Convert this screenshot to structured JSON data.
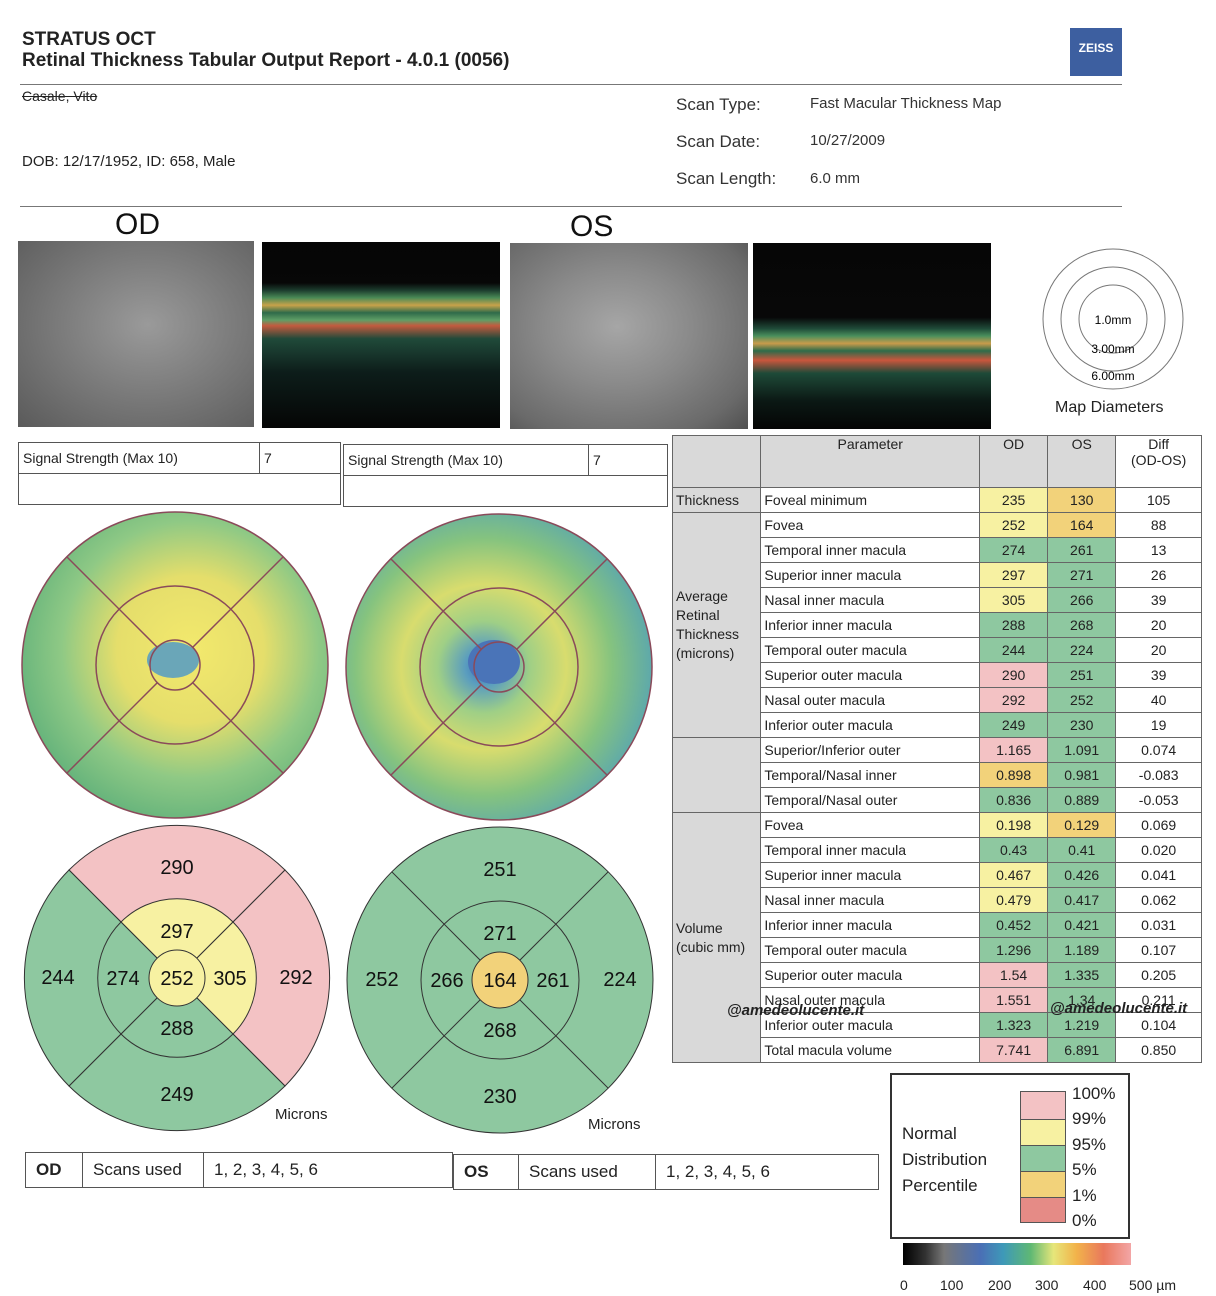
{
  "header": {
    "product": "STRATUS OCT",
    "report_title": "Retinal Thickness Tabular Output Report - 4.0.1 (0056)",
    "logo": "ZEISS"
  },
  "patient": {
    "name": "Casale, Vito",
    "dob_line": "DOB: 12/17/1952, ID: 658, Male"
  },
  "scan": {
    "type_label": "Scan Type:",
    "type_value": "Fast Macular Thickness Map",
    "date_label": "Scan Date:",
    "date_value": "10/27/2009",
    "length_label": "Scan Length:",
    "length_value": "6.0 mm"
  },
  "eyes": {
    "od": "OD",
    "os": "OS"
  },
  "map_diameters": {
    "label": "Map Diameters",
    "rings": [
      "1.0mm",
      "3.00mm",
      "6.00mm"
    ]
  },
  "signal": {
    "label": "Signal Strength (Max 10)",
    "od_value": "7",
    "os_value": "7"
  },
  "params_table": {
    "headers": [
      "Parameter",
      "OD",
      "OS",
      "Diff\n(OD-OS)"
    ],
    "groups": [
      {
        "label": "Thickness",
        "rows": [
          {
            "name": "Foveal minimum",
            "od": "235",
            "os": "130",
            "diff": "105",
            "od_c": "yel",
            "os_c": "org"
          }
        ]
      },
      {
        "label": "Average Retinal Thickness (microns)",
        "rows": [
          {
            "name": "Fovea",
            "od": "252",
            "os": "164",
            "diff": "88",
            "od_c": "yel",
            "os_c": "org"
          },
          {
            "name": "Temporal inner macula",
            "od": "274",
            "os": "261",
            "diff": "13",
            "od_c": "grn",
            "os_c": "grn"
          },
          {
            "name": "Superior inner macula",
            "od": "297",
            "os": "271",
            "diff": "26",
            "od_c": "yel",
            "os_c": "grn"
          },
          {
            "name": "Nasal inner macula",
            "od": "305",
            "os": "266",
            "diff": "39",
            "od_c": "yel",
            "os_c": "grn"
          },
          {
            "name": "Inferior inner macula",
            "od": "288",
            "os": "268",
            "diff": "20",
            "od_c": "grn",
            "os_c": "grn"
          },
          {
            "name": "Temporal outer macula",
            "od": "244",
            "os": "224",
            "diff": "20",
            "od_c": "grn",
            "os_c": "grn"
          },
          {
            "name": "Superior outer macula",
            "od": "290",
            "os": "251",
            "diff": "39",
            "od_c": "pink",
            "os_c": "grn"
          },
          {
            "name": "Nasal outer macula",
            "od": "292",
            "os": "252",
            "diff": "40",
            "od_c": "pink",
            "os_c": "grn"
          },
          {
            "name": "Inferior outer macula",
            "od": "249",
            "os": "230",
            "diff": "19",
            "od_c": "grn",
            "os_c": "grn"
          }
        ]
      },
      {
        "label": "",
        "rows": [
          {
            "name": "Superior/Inferior outer",
            "od": "1.165",
            "os": "1.091",
            "diff": "0.074",
            "od_c": "pink",
            "os_c": "grn"
          },
          {
            "name": "Temporal/Nasal inner",
            "od": "0.898",
            "os": "0.981",
            "diff": "-0.083",
            "od_c": "org",
            "os_c": "grn"
          },
          {
            "name": "Temporal/Nasal outer",
            "od": "0.836",
            "os": "0.889",
            "diff": "-0.053",
            "od_c": "grn",
            "os_c": "grn"
          }
        ]
      },
      {
        "label": "Volume (cubic mm)",
        "rows": [
          {
            "name": "Fovea",
            "od": "0.198",
            "os": "0.129",
            "diff": "0.069",
            "od_c": "yel",
            "os_c": "org"
          },
          {
            "name": "Temporal inner macula",
            "od": "0.43",
            "os": "0.41",
            "diff": "0.020",
            "od_c": "grn",
            "os_c": "grn"
          },
          {
            "name": "Superior inner macula",
            "od": "0.467",
            "os": "0.426",
            "diff": "0.041",
            "od_c": "yel",
            "os_c": "grn"
          },
          {
            "name": "Nasal inner macula",
            "od": "0.479",
            "os": "0.417",
            "diff": "0.062",
            "od_c": "yel",
            "os_c": "grn"
          },
          {
            "name": "Inferior inner macula",
            "od": "0.452",
            "os": "0.421",
            "diff": "0.031",
            "od_c": "grn",
            "os_c": "grn"
          },
          {
            "name": "Temporal outer macula",
            "od": "1.296",
            "os": "1.189",
            "diff": "0.107",
            "od_c": "grn",
            "os_c": "grn"
          },
          {
            "name": "Superior outer macula",
            "od": "1.54",
            "os": "1.335",
            "diff": "0.205",
            "od_c": "pink",
            "os_c": "grn"
          },
          {
            "name": "Nasal outer macula",
            "od": "1.551",
            "os": "1.34",
            "diff": "0.211",
            "od_c": "pink",
            "os_c": "grn"
          },
          {
            "name": "Inferior outer macula",
            "od": "1.323",
            "os": "1.219",
            "diff": "0.104",
            "od_c": "grn",
            "os_c": "grn"
          },
          {
            "name": "Total macula volume",
            "od": "7.741",
            "os": "6.891",
            "diff": "0.850",
            "od_c": "pink",
            "os_c": "grn"
          }
        ]
      }
    ]
  },
  "sector_maps": {
    "unit_label": "Microns",
    "od": {
      "center": "252",
      "inner_sup": "297",
      "inner_temp": "274",
      "inner_nasal": "305",
      "inner_inf": "288",
      "outer_sup": "290",
      "outer_temp": "244",
      "outer_nasal": "292",
      "outer_inf": "249"
    },
    "os": {
      "center": "164",
      "inner_sup": "271",
      "inner_temp": "266",
      "inner_nasal": "261",
      "inner_inf": "268",
      "outer_sup": "251",
      "outer_temp": "252",
      "outer_nasal": "224",
      "outer_inf": "230"
    }
  },
  "scans_used": {
    "od_label": "OD",
    "os_label": "OS",
    "label": "Scans used",
    "od_value": "1, 2, 3, 4, 5, 6",
    "os_value": "1, 2, 3, 4, 5, 6"
  },
  "legend": {
    "title_lines": [
      "Normal",
      "Distribution",
      "Percentile"
    ],
    "percentiles": [
      "100%",
      "99%",
      "95%",
      "5%",
      "1%",
      "0%"
    ],
    "colors": {
      "pink": "#f3c2c4",
      "yellow": "#f7f1a2",
      "green": "#8ec8a0",
      "orange": "#f2d27a",
      "red": "#e58b86"
    }
  },
  "scale_bar": {
    "ticks": [
      "0",
      "100",
      "200",
      "300",
      "400",
      "500 µm"
    ]
  },
  "watermark": "@amedeolucente.it"
}
